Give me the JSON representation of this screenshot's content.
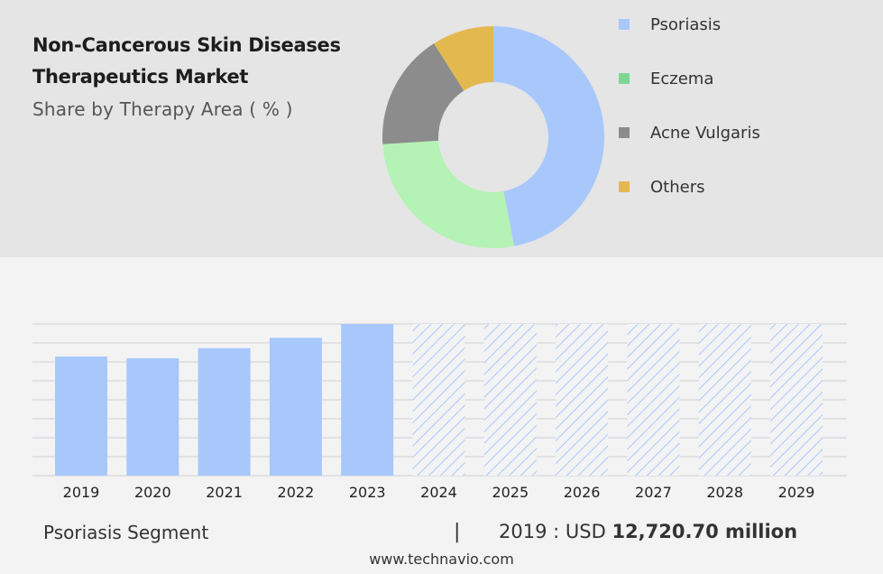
{
  "header": {
    "title": "Non-Cancerous Skin Diseases Therapeutics Market",
    "subtitle": "Share by Therapy Area ( % )"
  },
  "chart_data": [
    {
      "type": "pie",
      "variant": "donut",
      "labels": [
        "Psoriasis",
        "Eczema",
        "Acne Vulgaris",
        "Others"
      ],
      "values": [
        47,
        27,
        17,
        9
      ],
      "colors": [
        "#a8c8fc",
        "#b5f2b5",
        "#8c8c8c",
        "#e3b94f"
      ],
      "legend": {
        "position": "right",
        "items": [
          {
            "label": "Psoriasis",
            "color": "#a8c8fc"
          },
          {
            "label": "Eczema",
            "color": "#7ed694"
          },
          {
            "label": "Acne Vulgaris",
            "color": "#8c8c8c"
          },
          {
            "label": "Others",
            "color": "#e3b94f"
          }
        ]
      }
    },
    {
      "type": "bar",
      "categories": [
        "2019",
        "2020",
        "2021",
        "2022",
        "2023",
        "2024",
        "2025",
        "2026",
        "2027",
        "2028",
        "2029"
      ],
      "values": [
        12720.7,
        12540,
        13620,
        14730,
        16200,
        null,
        null,
        null,
        null,
        null,
        null
      ],
      "forecast_categories": [
        "2024",
        "2025",
        "2026",
        "2027",
        "2028",
        "2029"
      ],
      "ylim": [
        0,
        16200
      ],
      "grid": true,
      "bar_color": "#a8c8fc",
      "forecast_pattern": "diagonal-hatch",
      "forecast_color": "#a8c8fc"
    }
  ],
  "footer": {
    "segment": "Psoriasis Segment",
    "separator": "|",
    "year_label": "2019 : USD",
    "value": "12,720.70 million",
    "source": "www.technavio.com"
  }
}
